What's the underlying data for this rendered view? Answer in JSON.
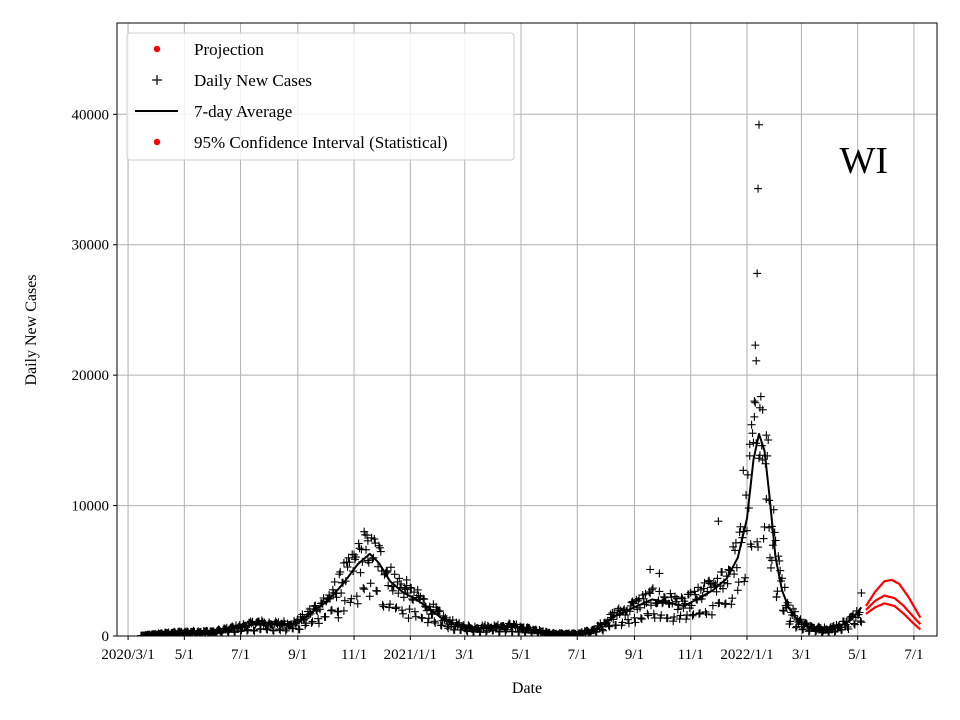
{
  "chart_data": {
    "type": "scatter",
    "title": "",
    "annotation": "WI",
    "xlabel": "Date",
    "ylabel": "Daily New Cases",
    "xlim": [
      "2020-02-18",
      "2022-07-26"
    ],
    "ylim": [
      0,
      47000
    ],
    "grid": true,
    "legend_position": "top-left",
    "legend": [
      {
        "label": "Projection",
        "marker": "dot",
        "color": "#ff0000"
      },
      {
        "label": "Daily New Cases",
        "marker": "plus",
        "color": "#000000"
      },
      {
        "label": "7-day Average",
        "marker": "line",
        "color": "#000000"
      },
      {
        "label": "95% Confidence Interval (Statistical)",
        "marker": "dot",
        "color": "#ff0000"
      }
    ],
    "x_ticks": [
      {
        "date": "2020-03-01",
        "label": "2020/3/1"
      },
      {
        "date": "2020-05-01",
        "label": "5/1"
      },
      {
        "date": "2020-07-01",
        "label": "7/1"
      },
      {
        "date": "2020-09-01",
        "label": "9/1"
      },
      {
        "date": "2020-11-01",
        "label": "11/1"
      },
      {
        "date": "2021-01-01",
        "label": "2021/1/1"
      },
      {
        "date": "2021-03-01",
        "label": "3/1"
      },
      {
        "date": "2021-05-01",
        "label": "5/1"
      },
      {
        "date": "2021-07-01",
        "label": "7/1"
      },
      {
        "date": "2021-09-01",
        "label": "9/1"
      },
      {
        "date": "2021-11-01",
        "label": "11/1"
      },
      {
        "date": "2022-01-01",
        "label": "2022/1/1"
      },
      {
        "date": "2022-03-01",
        "label": "3/1"
      },
      {
        "date": "2022-05-01",
        "label": "5/1"
      },
      {
        "date": "2022-07-01",
        "label": "7/1"
      }
    ],
    "y_ticks": [
      0,
      10000,
      20000,
      30000,
      40000
    ],
    "series": [
      {
        "name": "7-day Average",
        "kind": "line",
        "color": "#000000",
        "points": [
          [
            "2020-03-15",
            20
          ],
          [
            "2020-04-01",
            150
          ],
          [
            "2020-05-01",
            300
          ],
          [
            "2020-06-01",
            320
          ],
          [
            "2020-07-01",
            700
          ],
          [
            "2020-07-20",
            950
          ],
          [
            "2020-08-10",
            850
          ],
          [
            "2020-09-01",
            1000
          ],
          [
            "2020-09-20",
            2000
          ],
          [
            "2020-10-05",
            2800
          ],
          [
            "2020-10-20",
            4000
          ],
          [
            "2020-11-05",
            5500
          ],
          [
            "2020-11-18",
            6300
          ],
          [
            "2020-11-28",
            5600
          ],
          [
            "2020-12-10",
            4200
          ],
          [
            "2020-12-25",
            3300
          ],
          [
            "2021-01-05",
            2900
          ],
          [
            "2021-01-20",
            2200
          ],
          [
            "2021-02-05",
            1300
          ],
          [
            "2021-02-20",
            800
          ],
          [
            "2021-03-10",
            600
          ],
          [
            "2021-04-01",
            700
          ],
          [
            "2021-04-20",
            750
          ],
          [
            "2021-05-10",
            500
          ],
          [
            "2021-06-01",
            200
          ],
          [
            "2021-07-01",
            150
          ],
          [
            "2021-07-20",
            500
          ],
          [
            "2021-08-10",
            1500
          ],
          [
            "2021-09-01",
            2200
          ],
          [
            "2021-09-20",
            2800
          ],
          [
            "2021-10-05",
            2600
          ],
          [
            "2021-10-25",
            2300
          ],
          [
            "2021-11-10",
            2900
          ],
          [
            "2021-11-25",
            3500
          ],
          [
            "2021-12-10",
            4400
          ],
          [
            "2021-12-22",
            6000
          ],
          [
            "2022-01-01",
            9000
          ],
          [
            "2022-01-08",
            13500
          ],
          [
            "2022-01-14",
            15500
          ],
          [
            "2022-01-20",
            14200
          ],
          [
            "2022-01-25",
            11000
          ],
          [
            "2022-02-01",
            6000
          ],
          [
            "2022-02-08",
            3500
          ],
          [
            "2022-02-15",
            2200
          ],
          [
            "2022-02-25",
            1200
          ],
          [
            "2022-03-10",
            700
          ],
          [
            "2022-03-25",
            500
          ],
          [
            "2022-04-10",
            700
          ],
          [
            "2022-04-25",
            1300
          ],
          [
            "2022-05-05",
            2200
          ]
        ]
      },
      {
        "name": "Projection",
        "kind": "line",
        "color": "#ff0000",
        "points": [
          [
            "2022-05-10",
            2000
          ],
          [
            "2022-05-20",
            2700
          ],
          [
            "2022-05-30",
            3100
          ],
          [
            "2022-06-10",
            2900
          ],
          [
            "2022-06-20",
            2300
          ],
          [
            "2022-06-30",
            1500
          ],
          [
            "2022-07-08",
            900
          ]
        ]
      },
      {
        "name": "95% Confidence Interval (Statistical)",
        "kind": "line",
        "color": "#ff0000",
        "points": [
          [
            "2022-05-10",
            2300
          ],
          [
            "2022-05-20",
            3400
          ],
          [
            "2022-05-30",
            4200
          ],
          [
            "2022-06-07",
            4300
          ],
          [
            "2022-06-15",
            4000
          ],
          [
            "2022-06-25",
            3000
          ],
          [
            "2022-07-08",
            1400
          ]
        ]
      },
      {
        "name": "95% Confidence Interval (Statistical)",
        "kind": "line",
        "color": "#ff0000",
        "points": [
          [
            "2022-05-10",
            1700
          ],
          [
            "2022-05-20",
            2200
          ],
          [
            "2022-05-30",
            2500
          ],
          [
            "2022-06-10",
            2300
          ],
          [
            "2022-06-20",
            1700
          ],
          [
            "2022-06-30",
            1000
          ],
          [
            "2022-07-08",
            500
          ]
        ]
      },
      {
        "name": "Daily New Cases",
        "kind": "scatter",
        "color": "#000000",
        "generated_from_trend": "7-day Average",
        "spread": 0.22,
        "outliers": [
          [
            "2022-01-10",
            22300
          ],
          [
            "2022-01-11",
            21100
          ],
          [
            "2022-01-12",
            27800
          ],
          [
            "2022-01-13",
            34300
          ],
          [
            "2022-01-14",
            39200
          ],
          [
            "2022-01-15",
            17500
          ],
          [
            "2022-01-09",
            16800
          ],
          [
            "2021-12-28",
            12700
          ],
          [
            "2022-01-04",
            14700
          ],
          [
            "2022-01-06",
            16200
          ],
          [
            "2021-12-01",
            8800
          ],
          [
            "2020-11-12",
            8000
          ],
          [
            "2020-11-16",
            7300
          ],
          [
            "2020-10-21",
            5600
          ],
          [
            "2020-10-15",
            1400
          ],
          [
            "2021-09-18",
            5100
          ],
          [
            "2021-09-28",
            4800
          ],
          [
            "2020-12-28",
            4300
          ],
          [
            "2022-01-18",
            13500
          ],
          [
            "2022-01-22",
            10500
          ],
          [
            "2022-01-25",
            8300
          ],
          [
            "2022-01-28",
            5800
          ],
          [
            "2022-02-02",
            3000
          ],
          [
            "2022-05-05",
            3300
          ]
        ]
      }
    ]
  }
}
